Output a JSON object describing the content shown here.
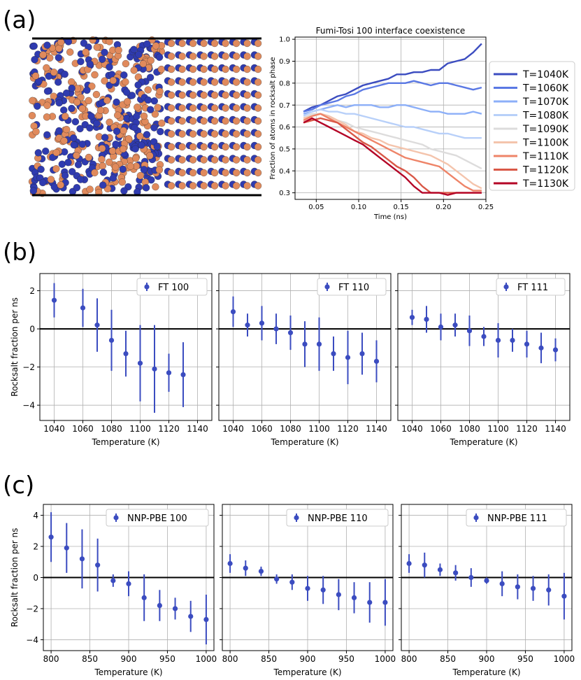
{
  "panel_labels": [
    "(a)",
    "(b)",
    "(c)"
  ],
  "colors": {
    "marker": "#3b4cc0",
    "atom_orange": "#e08a5c",
    "atom_blue": "#2f3bb0",
    "axis": "#000000",
    "grid": "#b0b0b0"
  },
  "chart_data": [
    {
      "id": "a",
      "type": "line",
      "title": "Fumi-Tosi 100 interface coexistence",
      "xlabel": "Time (ns)",
      "ylabel": "Fraction of atoms in rocksalt phase",
      "xlim": [
        0.025,
        0.25
      ],
      "ylim": [
        0.27,
        1.01
      ],
      "xticks": [
        0.05,
        0.1,
        0.15,
        0.2,
        0.25
      ],
      "xtick_labels": [
        "0.05",
        "0.10",
        "0.15",
        "0.20",
        "0.25"
      ],
      "yticks": [
        0.3,
        0.4,
        0.5,
        0.6,
        0.7,
        0.8,
        0.9,
        1.0
      ],
      "ytick_labels": [
        "0.3",
        "0.4",
        "0.5",
        "0.6",
        "0.7",
        "0.8",
        "0.9",
        "1.0"
      ],
      "grid": true,
      "legend_position": "outside-right",
      "x": [
        0.035,
        0.045,
        0.055,
        0.065,
        0.075,
        0.085,
        0.095,
        0.105,
        0.115,
        0.125,
        0.135,
        0.145,
        0.155,
        0.165,
        0.175,
        0.185,
        0.195,
        0.205,
        0.215,
        0.225,
        0.235,
        0.245
      ],
      "series": [
        {
          "name": "T=1040K",
          "color": "#3b4cc0",
          "values": [
            0.67,
            0.69,
            0.7,
            0.72,
            0.74,
            0.75,
            0.77,
            0.79,
            0.8,
            0.81,
            0.82,
            0.84,
            0.84,
            0.85,
            0.85,
            0.86,
            0.86,
            0.89,
            0.9,
            0.91,
            0.94,
            0.98
          ]
        },
        {
          "name": "T=1060K",
          "color": "#5a78e4",
          "values": [
            0.67,
            0.68,
            0.7,
            0.71,
            0.72,
            0.74,
            0.75,
            0.77,
            0.78,
            0.79,
            0.8,
            0.8,
            0.8,
            0.81,
            0.8,
            0.79,
            0.8,
            0.8,
            0.79,
            0.78,
            0.77,
            0.78
          ]
        },
        {
          "name": "T=1070K",
          "color": "#8caff8",
          "values": [
            0.66,
            0.67,
            0.68,
            0.69,
            0.7,
            0.69,
            0.7,
            0.7,
            0.7,
            0.69,
            0.69,
            0.7,
            0.7,
            0.69,
            0.68,
            0.67,
            0.67,
            0.66,
            0.66,
            0.66,
            0.67,
            0.66
          ]
        },
        {
          "name": "T=1080K",
          "color": "#b8d0f9",
          "values": [
            0.65,
            0.67,
            0.68,
            0.67,
            0.67,
            0.66,
            0.66,
            0.65,
            0.64,
            0.63,
            0.62,
            0.61,
            0.6,
            0.6,
            0.59,
            0.58,
            0.57,
            0.57,
            0.56,
            0.55,
            0.55,
            0.55
          ]
        },
        {
          "name": "T=1090K",
          "color": "#dddcdc",
          "values": [
            0.64,
            0.66,
            0.66,
            0.65,
            0.63,
            0.62,
            0.6,
            0.59,
            0.58,
            0.57,
            0.56,
            0.55,
            0.54,
            0.53,
            0.52,
            0.5,
            0.49,
            0.48,
            0.47,
            0.45,
            0.43,
            0.41
          ]
        },
        {
          "name": "T=1100K",
          "color": "#f4c4ac",
          "values": [
            0.64,
            0.65,
            0.66,
            0.65,
            0.63,
            0.61,
            0.58,
            0.57,
            0.55,
            0.54,
            0.52,
            0.51,
            0.5,
            0.49,
            0.48,
            0.47,
            0.45,
            0.43,
            0.4,
            0.37,
            0.34,
            0.32
          ]
        },
        {
          "name": "T=1110K",
          "color": "#ee8468",
          "values": [
            0.63,
            0.65,
            0.66,
            0.64,
            0.62,
            0.6,
            0.58,
            0.56,
            0.54,
            0.52,
            0.5,
            0.48,
            0.46,
            0.45,
            0.44,
            0.43,
            0.42,
            0.39,
            0.36,
            0.33,
            0.31,
            0.31
          ]
        },
        {
          "name": "T=1120K",
          "color": "#d95847",
          "values": [
            0.62,
            0.63,
            0.64,
            0.63,
            0.62,
            0.59,
            0.56,
            0.53,
            0.51,
            0.48,
            0.45,
            0.42,
            0.4,
            0.37,
            0.33,
            0.3,
            0.3,
            0.3,
            0.3,
            0.3,
            0.3,
            0.3
          ]
        },
        {
          "name": "T=1130K",
          "color": "#b40426",
          "values": [
            0.62,
            0.64,
            0.62,
            0.6,
            0.58,
            0.56,
            0.54,
            0.52,
            0.49,
            0.46,
            0.43,
            0.4,
            0.37,
            0.33,
            0.3,
            0.3,
            0.3,
            0.29,
            0.3,
            0.3,
            0.3,
            0.3
          ]
        }
      ]
    },
    {
      "id": "b1",
      "type": "scatter",
      "legend": "FT 100",
      "xlabel": "Temperature (K)",
      "ylabel": "Rocksalt fraction per ns",
      "xlim": [
        1030,
        1150
      ],
      "ylim": [
        -4.8,
        2.9
      ],
      "xticks": [
        1040,
        1060,
        1080,
        1100,
        1120,
        1140
      ],
      "xtick_labels": [
        "1040",
        "1060",
        "1080",
        "1100",
        "1120",
        "1140"
      ],
      "yticks": [
        -4,
        -2,
        0,
        2
      ],
      "ytick_labels": [
        "−4",
        "−2",
        "0",
        "2"
      ],
      "x": [
        1040,
        1060,
        1070,
        1080,
        1090,
        1100,
        1110,
        1120,
        1130
      ],
      "values": [
        1.5,
        1.1,
        0.2,
        -0.6,
        -1.3,
        -1.8,
        -2.1,
        -2.3,
        -2.4
      ],
      "errors": [
        0.9,
        1.0,
        1.4,
        1.6,
        1.2,
        2.0,
        2.3,
        1.0,
        1.7
      ],
      "grid": true,
      "legend_position": "top-right"
    },
    {
      "id": "b2",
      "type": "scatter",
      "legend": "FT 110",
      "xlabel": "Temperature (K)",
      "ylabel": "",
      "xlim": [
        1030,
        1150
      ],
      "ylim": [
        -4.8,
        2.9
      ],
      "xticks": [
        1040,
        1060,
        1080,
        1100,
        1120,
        1140
      ],
      "xtick_labels": [
        "1040",
        "1060",
        "1080",
        "1100",
        "1120",
        "1140"
      ],
      "yticks": [
        -4,
        -2,
        0,
        2
      ],
      "ytick_labels": [],
      "x": [
        1040,
        1050,
        1060,
        1070,
        1080,
        1090,
        1100,
        1110,
        1120,
        1130,
        1140
      ],
      "values": [
        0.9,
        0.2,
        0.3,
        0.0,
        -0.2,
        -0.8,
        -0.8,
        -1.3,
        -1.5,
        -1.3,
        -1.7
      ],
      "errors": [
        0.8,
        0.6,
        0.9,
        0.8,
        0.9,
        1.2,
        1.4,
        0.9,
        1.4,
        1.1,
        1.1
      ],
      "grid": true,
      "legend_position": "top-right"
    },
    {
      "id": "b3",
      "type": "scatter",
      "legend": "FT 111",
      "xlabel": "Temperature (K)",
      "ylabel": "",
      "xlim": [
        1030,
        1150
      ],
      "ylim": [
        -4.8,
        2.9
      ],
      "xticks": [
        1040,
        1060,
        1080,
        1100,
        1120,
        1140
      ],
      "xtick_labels": [
        "1040",
        "1060",
        "1080",
        "1100",
        "1120",
        "1140"
      ],
      "yticks": [
        -4,
        -2,
        0,
        2
      ],
      "ytick_labels": [],
      "x": [
        1040,
        1050,
        1060,
        1070,
        1080,
        1090,
        1100,
        1110,
        1120,
        1130,
        1140
      ],
      "values": [
        0.6,
        0.5,
        0.1,
        0.2,
        -0.1,
        -0.4,
        -0.6,
        -0.6,
        -0.8,
        -1.0,
        -1.1
      ],
      "errors": [
        0.4,
        0.7,
        0.7,
        0.6,
        0.8,
        0.5,
        0.9,
        0.6,
        0.7,
        0.8,
        0.6
      ],
      "grid": true,
      "legend_position": "top-right"
    },
    {
      "id": "c1",
      "type": "scatter",
      "legend": "NNP-PBE 100",
      "xlabel": "Temperature (K)",
      "ylabel": "Rocksalt fraction per ns",
      "xlim": [
        790,
        1010
      ],
      "ylim": [
        -4.7,
        4.7
      ],
      "xticks": [
        800,
        850,
        900,
        950,
        1000
      ],
      "xtick_labels": [
        "800",
        "850",
        "900",
        "950",
        "1000"
      ],
      "yticks": [
        -4,
        -2,
        0,
        2,
        4
      ],
      "ytick_labels": [
        "−4",
        "−2",
        "0",
        "2",
        "4"
      ],
      "x": [
        800,
        820,
        840,
        860,
        880,
        900,
        920,
        940,
        960,
        980,
        1000
      ],
      "values": [
        2.6,
        1.9,
        1.2,
        0.8,
        -0.2,
        -0.4,
        -1.3,
        -1.8,
        -2.0,
        -2.5,
        -2.7
      ],
      "errors": [
        1.6,
        1.6,
        1.9,
        1.7,
        0.4,
        0.8,
        1.5,
        1.0,
        0.7,
        1.0,
        1.6
      ],
      "grid": true,
      "legend_position": "top-right"
    },
    {
      "id": "c2",
      "type": "scatter",
      "legend": "NNP-PBE 110",
      "xlabel": "Temperature (K)",
      "ylabel": "",
      "xlim": [
        790,
        1010
      ],
      "ylim": [
        -4.7,
        4.7
      ],
      "xticks": [
        800,
        850,
        900,
        950,
        1000
      ],
      "xtick_labels": [
        "800",
        "850",
        "900",
        "950",
        "1000"
      ],
      "yticks": [
        -4,
        -2,
        0,
        2,
        4
      ],
      "ytick_labels": [],
      "x": [
        800,
        820,
        840,
        860,
        880,
        900,
        920,
        940,
        960,
        980,
        1000
      ],
      "values": [
        0.9,
        0.6,
        0.4,
        -0.1,
        -0.3,
        -0.7,
        -0.8,
        -1.1,
        -1.3,
        -1.6,
        -1.6
      ],
      "errors": [
        0.6,
        0.5,
        0.3,
        0.3,
        0.5,
        0.8,
        0.9,
        1.0,
        1.0,
        1.3,
        1.5
      ],
      "grid": true,
      "legend_position": "top-right"
    },
    {
      "id": "c3",
      "type": "scatter",
      "legend": "NNP-PBE 111",
      "xlabel": "Temperature (K)",
      "ylabel": "",
      "xlim": [
        790,
        1010
      ],
      "ylim": [
        -4.7,
        4.7
      ],
      "xticks": [
        800,
        850,
        900,
        950,
        1000
      ],
      "xtick_labels": [
        "800",
        "850",
        "900",
        "950",
        "1000"
      ],
      "yticks": [
        -4,
        -2,
        0,
        2,
        4
      ],
      "ytick_labels": [],
      "x": [
        800,
        820,
        840,
        860,
        880,
        900,
        920,
        940,
        960,
        980,
        1000
      ],
      "values": [
        0.9,
        0.8,
        0.5,
        0.3,
        0.0,
        -0.2,
        -0.4,
        -0.6,
        -0.7,
        -0.8,
        -1.2
      ],
      "errors": [
        0.6,
        0.8,
        0.4,
        0.5,
        0.6,
        0.2,
        0.8,
        0.8,
        0.8,
        1.0,
        1.5
      ],
      "grid": true,
      "legend_position": "top-right"
    }
  ]
}
